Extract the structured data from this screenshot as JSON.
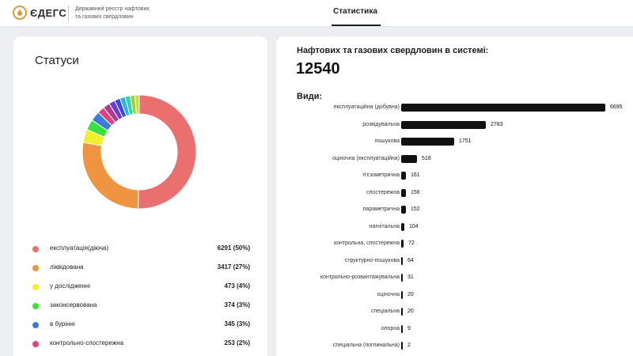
{
  "header": {
    "logo_text": "ЄДЕГС",
    "subtitle_line1": "Державний реєстр нафтових",
    "subtitle_line2": "та газових свердловин",
    "tab_label": "Статистика"
  },
  "statuses": {
    "title": "Статуси",
    "items": [
      {
        "label": "експлуатація(діюча)",
        "value": "6291 (50%)",
        "color": "#ea6f6f"
      },
      {
        "label": "ліквідована",
        "value": "3417 (27%)",
        "color": "#ef9440"
      },
      {
        "label": "у дослідженні",
        "value": "473 (4%)",
        "color": "#f4ef2c"
      },
      {
        "label": "законсервована",
        "value": "374 (3%)",
        "color": "#39e23a"
      },
      {
        "label": "в бурінні",
        "value": "345 (3%)",
        "color": "#3e7bd8"
      },
      {
        "label": "контрольно-спостережна",
        "value": "253 (2%)",
        "color": "#e0447e"
      }
    ]
  },
  "summary": {
    "total_label": "Нафтових та газових свердловин в системі:",
    "total_value": "12540",
    "types_title": "Види:"
  },
  "chart_data": [
    {
      "type": "pie",
      "title": "Статуси",
      "variant": "donut",
      "slices": [
        {
          "label": "експлуатація(діюча)",
          "value": 6291,
          "color": "#ea6f6f"
        },
        {
          "label": "ліквідована",
          "value": 3417,
          "color": "#ef9440"
        },
        {
          "label": "у дослідженні",
          "value": 473,
          "color": "#f4ef2c"
        },
        {
          "label": "законсервована",
          "value": 374,
          "color": "#39e23a"
        },
        {
          "label": "в бурінні",
          "value": 345,
          "color": "#3e7bd8"
        },
        {
          "label": "контрольно-спостережна",
          "value": 253,
          "color": "#e0447e"
        },
        {
          "label": "",
          "value": 240,
          "color": "#b03a8c"
        },
        {
          "label": "",
          "value": 220,
          "color": "#6c3bd1"
        },
        {
          "label": "",
          "value": 200,
          "color": "#2f50d6"
        },
        {
          "label": "",
          "value": 190,
          "color": "#2bb6d8"
        },
        {
          "label": "",
          "value": 180,
          "color": "#2fd3a5"
        },
        {
          "label": "",
          "value": 170,
          "color": "#9bd23a"
        },
        {
          "label": "",
          "value": 150,
          "color": "#cfd84a"
        }
      ]
    },
    {
      "type": "bar",
      "orientation": "horizontal",
      "title": "Види:",
      "categories": [
        "експлуатаційна (добувна)",
        "розвідувальна",
        "пошукова",
        "оціночна (експлуатаційна)",
        "п'єзометрична",
        "спостережна",
        "параметрична",
        "нагнітальна",
        "контрольна, спостережна",
        "структурно-пошукова",
        "контрольно-розвантажувальна",
        "оціночна",
        "спеціальна",
        "опорна",
        "спеціальна (поглинальна)"
      ],
      "values": [
        6695,
        2783,
        1751,
        518,
        161,
        156,
        152,
        104,
        72,
        64,
        31,
        20,
        20,
        9,
        2
      ],
      "color": "#111111"
    }
  ]
}
